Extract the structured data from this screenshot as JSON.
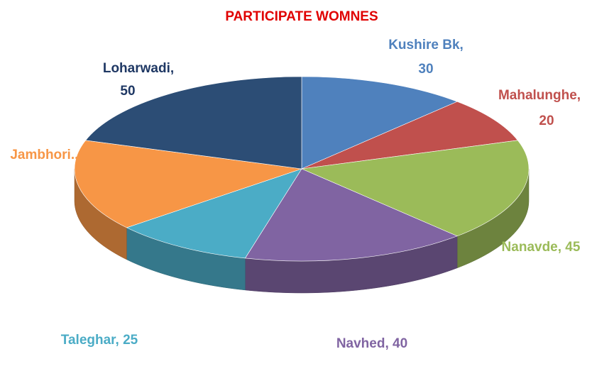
{
  "chart_data": {
    "type": "pie",
    "title": "PARTICIPATE WOMNES",
    "values": [
      30,
      20,
      45,
      40,
      25,
      40,
      50
    ],
    "value_labels": [
      "Kushire Bk, 30",
      "Mahalunghe, 20",
      "Nanavde, 45",
      "Navhed, 40",
      "Taleghar, 25",
      "Jambhori...",
      "Loharwadi, 50"
    ],
    "colors": [
      "#4f81bd",
      "#c0504d",
      "#9bbb59",
      "#8064a2",
      "#4bacc6",
      "#f79646",
      "#2c4d75"
    ],
    "three_d": true
  }
}
